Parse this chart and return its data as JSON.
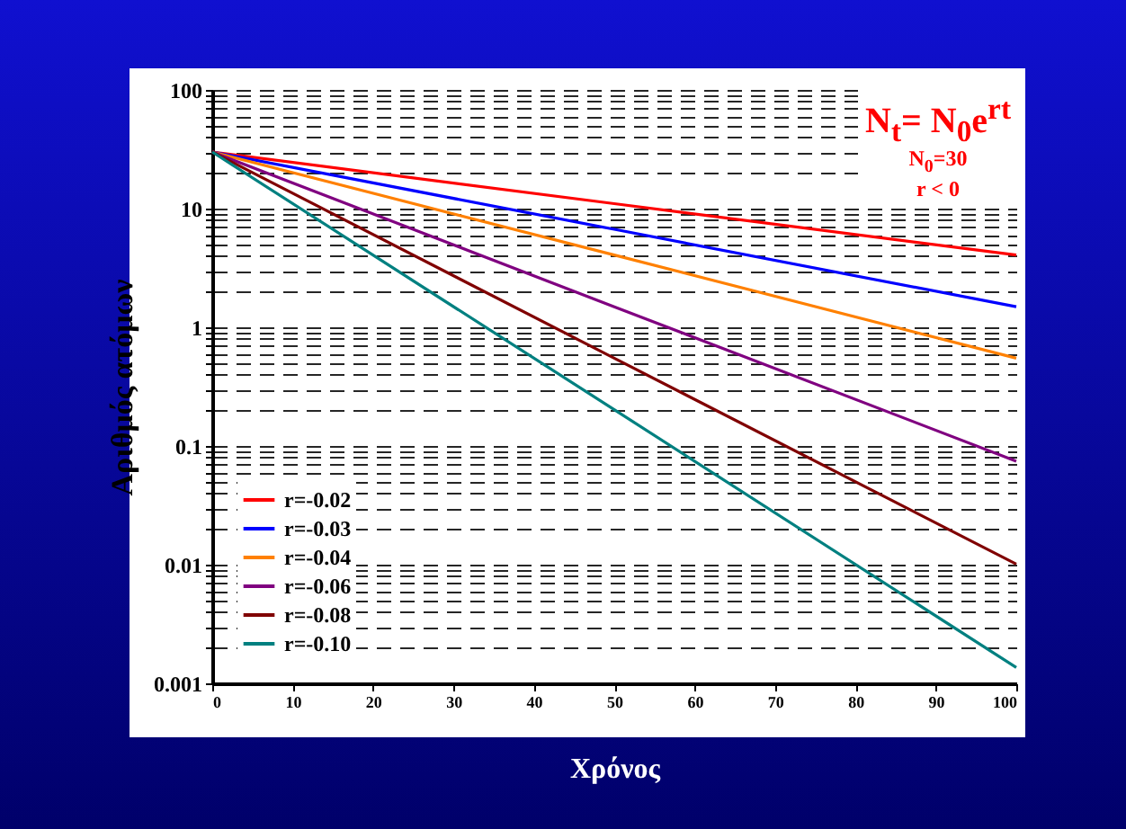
{
  "chart_data": {
    "type": "line",
    "xlabel": "Χρόνος",
    "ylabel": "Αριθμός ατόμων",
    "annotations": [
      "N$_{t}$= N$_{0}$e$^{rt}$",
      "N$_{0}$=30",
      "r < 0"
    ],
    "x": [
      0,
      50,
      100
    ],
    "series": [
      {
        "name": "r=-0.02",
        "color": "#ff0000",
        "values": [
          30,
          11.0,
          4.06
        ]
      },
      {
        "name": "r=-0.03",
        "color": "#0000ff",
        "values": [
          30,
          6.69,
          1.49
        ]
      },
      {
        "name": "r=-0.04",
        "color": "#ff8000",
        "values": [
          30,
          4.06,
          0.549
        ]
      },
      {
        "name": "r=-0.06",
        "color": "#800080",
        "values": [
          30,
          1.49,
          0.0744
        ]
      },
      {
        "name": "r=-0.08",
        "color": "#800000",
        "values": [
          30,
          0.549,
          0.0101
        ]
      },
      {
        "name": "r=-0.10",
        "color": "#008080",
        "values": [
          30,
          0.202,
          0.00136
        ]
      }
    ],
    "log": true,
    "xlim": [
      0,
      100
    ],
    "xticks": [
      0,
      10,
      20,
      30,
      40,
      50,
      60,
      70,
      80,
      90,
      100
    ],
    "ylim": [
      0.001,
      100
    ],
    "yticks": [
      0.001,
      {
        "value": 0.002,
        "label": null
      },
      {
        "value": 0.003,
        "label": null
      },
      {
        "value": 0.004,
        "label": null
      },
      {
        "value": 0.005,
        "label": null
      },
      {
        "value": 0.006,
        "label": null
      },
      {
        "value": 0.007,
        "label": null
      },
      {
        "value": 0.008,
        "label": null
      },
      {
        "value": 0.009,
        "label": null
      },
      0.01,
      {
        "value": 0.02,
        "label": null
      },
      {
        "value": 0.03,
        "label": null
      },
      {
        "value": 0.04,
        "label": null
      },
      {
        "value": 0.05,
        "label": null
      },
      {
        "value": 0.06,
        "label": null
      },
      {
        "value": 0.07,
        "label": null
      },
      {
        "value": 0.08,
        "label": null
      },
      {
        "value": 0.09,
        "label": null
      },
      0.1,
      {
        "value": 0.2,
        "label": null
      },
      {
        "value": 0.3,
        "label": null
      },
      {
        "value": 0.4,
        "label": null
      },
      {
        "value": 0.5,
        "label": null
      },
      {
        "value": 0.6,
        "label": null
      },
      {
        "value": 0.7,
        "label": null
      },
      {
        "value": 0.8,
        "label": null
      },
      {
        "value": 0.9,
        "label": null
      },
      1,
      {
        "value": 2,
        "label": null
      },
      {
        "value": 3,
        "label": null
      },
      {
        "value": 4,
        "label": null
      },
      {
        "value": 5,
        "label": null
      },
      {
        "value": 6,
        "label": null
      },
      {
        "value": 7,
        "label": null
      },
      {
        "value": 8,
        "label": null
      },
      {
        "value": 9,
        "label": null
      },
      10,
      {
        "value": 20,
        "label": null
      },
      {
        "value": 30,
        "label": null
      },
      {
        "value": 40,
        "label": null
      },
      {
        "value": 50,
        "label": null
      },
      {
        "value": 60,
        "label": null
      },
      {
        "value": 70,
        "label": null
      },
      {
        "value": 80,
        "label": null
      },
      {
        "value": 90,
        "label": null
      },
      100
    ],
    "grid": "y",
    "line_style": "solid",
    "marker": "none",
    "legend": "bottom left"
  }
}
